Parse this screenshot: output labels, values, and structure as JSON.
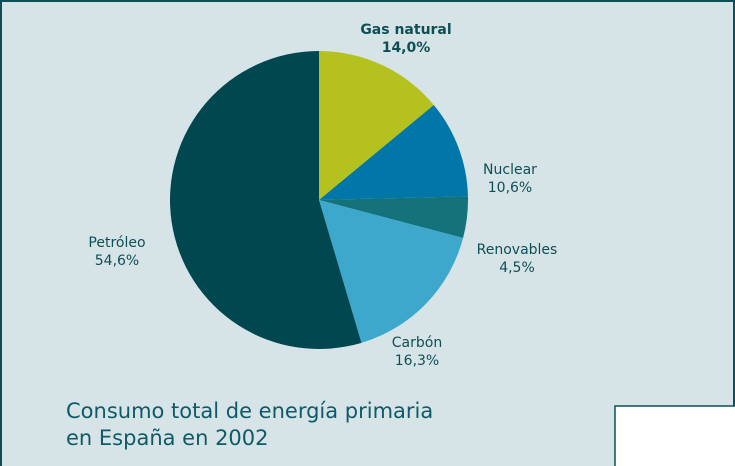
{
  "chart_data": {
    "type": "pie",
    "title": [
      "Consumo total de energía primaria",
      "en España en 2002"
    ],
    "categories": [
      "Gas natural",
      "Nuclear",
      "Renovables",
      "Carbón",
      "Petróleo"
    ],
    "values": [
      14.0,
      10.6,
      4.5,
      16.3,
      54.6
    ],
    "value_labels": [
      "14,0%",
      "10,6%",
      "4,5%",
      "16,3%",
      "54,6%"
    ],
    "colors": [
      "#b5c11e",
      "#0077a8",
      "#14737a",
      "#3ea8cc",
      "#004750"
    ]
  }
}
